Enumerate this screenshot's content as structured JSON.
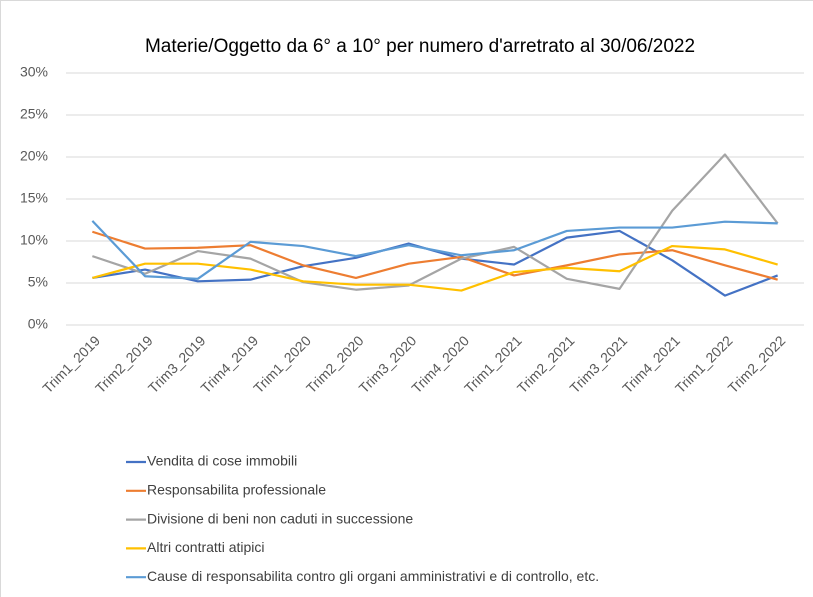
{
  "chart_data": {
    "type": "line",
    "title": "Materie/Oggetto da 6° a 10° per numero d'arretrato al 30/06/2022",
    "categories": [
      "Trim1_2019",
      "Trim2_2019",
      "Trim3_2019",
      "Trim4_2019",
      "Trim1_2020",
      "Trim2_2020",
      "Trim3_2020",
      "Trim4_2020",
      "Trim1_2021",
      "Trim2_2021",
      "Trim3_2021",
      "Trim4_2021",
      "Trim1_2022",
      "Trim2_2022"
    ],
    "series": [
      {
        "name": "Vendita di cose immobili",
        "color": "#4472c4",
        "values": [
          5.6,
          6.6,
          5.2,
          5.4,
          7.0,
          8.0,
          9.7,
          7.9,
          7.2,
          10.4,
          11.2,
          7.7,
          3.5,
          5.9
        ]
      },
      {
        "name": "Responsabilita professionale",
        "color": "#ed7d31",
        "values": [
          11.1,
          9.1,
          9.2,
          9.5,
          7.1,
          5.6,
          7.3,
          8.1,
          5.9,
          7.1,
          8.4,
          8.9,
          7.1,
          5.4
        ]
      },
      {
        "name": "Divisione di beni non caduti in successione",
        "color": "#a5a5a5",
        "values": [
          8.2,
          6.1,
          8.8,
          7.9,
          5.1,
          4.2,
          4.7,
          7.9,
          9.3,
          5.5,
          4.3,
          13.6,
          20.3,
          12.1
        ]
      },
      {
        "name": "Altri contratti atipici",
        "color": "#ffc000",
        "values": [
          5.6,
          7.3,
          7.3,
          6.6,
          5.2,
          4.8,
          4.8,
          4.1,
          6.3,
          6.8,
          6.4,
          9.4,
          9.0,
          7.2
        ]
      },
      {
        "name": "Cause di responsabilita contro gli organi amministrativi e di controllo, etc.",
        "color": "#5b9bd5",
        "values": [
          12.4,
          5.8,
          5.5,
          9.9,
          9.4,
          8.2,
          9.5,
          8.3,
          8.9,
          11.2,
          11.6,
          11.6,
          12.3,
          12.1
        ]
      }
    ],
    "ylim": [
      0,
      30
    ],
    "yticks": [
      {
        "value": 0,
        "label": "0%"
      },
      {
        "value": 5,
        "label": "5%"
      },
      {
        "value": 10,
        "label": "10%"
      },
      {
        "value": 15,
        "label": "15%"
      },
      {
        "value": 20,
        "label": "20%"
      },
      {
        "value": 25,
        "label": "25%"
      },
      {
        "value": 30,
        "label": "30%"
      }
    ],
    "grid": true
  }
}
